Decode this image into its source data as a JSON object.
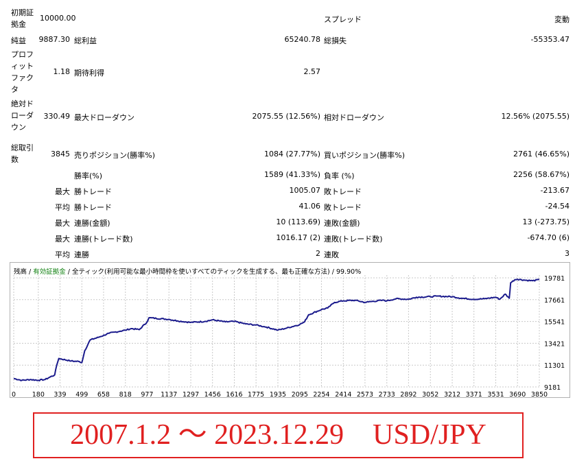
{
  "report": {
    "row1": {
      "deposit_label": "初期証拠金",
      "deposit_value": "10000.00",
      "spread_label": "スプレッド",
      "spread_value": "変動"
    },
    "row2": {
      "net_label": "純益",
      "net_value": "9887.30",
      "gross_profit_label": "総利益",
      "gross_profit_value": "65240.78",
      "gross_loss_label": "総損失",
      "gross_loss_value": "-55353.47"
    },
    "row3": {
      "pf_label": "プロフィットファクタ",
      "pf_value": "1.18",
      "ep_label": "期待利得",
      "ep_value": "2.57"
    },
    "row4": {
      "abs_dd_label": "絶対ドローダウン",
      "abs_dd_value": "330.49",
      "max_dd_label": "最大ドローダウン",
      "max_dd_value": "2075.55 (12.56%)",
      "rel_dd_label": "相対ドローダウン",
      "rel_dd_value": "12.56% (2075.55)"
    },
    "row5": {
      "trades_label": "総取引数",
      "trades_value": "3845",
      "short_label": "売りポジション(勝率%)",
      "short_value": "1084 (27.77%)",
      "long_label": "買いポジション(勝率%)",
      "long_value": "2761 (46.65%)"
    },
    "row6": {
      "win_label": "勝率(%)",
      "win_value": "1589 (41.33%)",
      "loss_label": "負率 (%)",
      "loss_value": "2256 (58.67%)"
    },
    "row7": {
      "prefix": "最大",
      "label": "勝トレード",
      "value": "1005.07",
      "label2": "敗トレード",
      "value2": "-213.67"
    },
    "row8": {
      "prefix": "平均",
      "label": "勝トレード",
      "value": "41.06",
      "label2": "敗トレード",
      "value2": "-24.54"
    },
    "row9": {
      "prefix": "最大",
      "label": "連勝(金額)",
      "value": "10 (113.69)",
      "label2": "連敗(金額)",
      "value2": "13 (-273.75)"
    },
    "row10": {
      "prefix": "最大",
      "label": "連勝(トレード数)",
      "value": "1016.17 (2)",
      "label2": "連敗(トレード数)",
      "value2": "-674.70 (6)"
    },
    "row11": {
      "prefix": "平均",
      "label": "連勝",
      "value": "2",
      "label2": "連敗",
      "value2": "3"
    }
  },
  "chart_legend": {
    "balance": "残高",
    "sep1": " / ",
    "equity": "有効証拠金",
    "sep2": " / ",
    "model": "全ティック(利用可能な最小時間枠を使いすべてのティックを生成する、最も正確な方法)",
    "sep3": " / ",
    "quality": "99.90%"
  },
  "chart_data": {
    "type": "line",
    "series": [
      {
        "name": "残高",
        "color": "#1a1a8c",
        "x": [
          0,
          60,
          120,
          180,
          230,
          260,
          300,
          315,
          330,
          420,
          480,
          499,
          520,
          560,
          620,
          700,
          780,
          818,
          860,
          920,
          977,
          990,
          1137,
          1200,
          1297,
          1400,
          1456,
          1550,
          1616,
          1700,
          1775,
          1850,
          1935,
          2000,
          2095,
          2130,
          2160,
          2254,
          2300,
          2350,
          2414,
          2500,
          2573,
          2600,
          2700,
          2733,
          2800,
          2892,
          2950,
          3052,
          3100,
          3212,
          3280,
          3371,
          3450,
          3531,
          3560,
          3600,
          3630,
          3640,
          3670,
          3690,
          3750,
          3800,
          3850
        ],
        "y": [
          10000,
          9820,
          9900,
          9830,
          9900,
          10100,
          10350,
          11300,
          11950,
          11700,
          11650,
          11550,
          12700,
          13750,
          14000,
          14400,
          14600,
          14700,
          14850,
          14750,
          15500,
          15900,
          15750,
          15600,
          15450,
          15550,
          15700,
          15500,
          15550,
          15300,
          15200,
          15000,
          14700,
          14900,
          15250,
          15500,
          16200,
          16700,
          16850,
          17400,
          17550,
          17600,
          17400,
          17450,
          17600,
          17550,
          17750,
          17700,
          17900,
          17950,
          18000,
          17950,
          17800,
          17700,
          17750,
          17900,
          17700,
          18200,
          17800,
          19300,
          19600,
          19650,
          19550,
          19500,
          19600
        ]
      }
    ],
    "x_ticks": [
      "0",
      "180",
      "339",
      "499",
      "658",
      "818",
      "977",
      "1137",
      "1297",
      "1456",
      "1616",
      "1775",
      "1935",
      "2095",
      "2254",
      "2414",
      "2573",
      "2733",
      "2892",
      "3052",
      "3212",
      "3371",
      "3531",
      "3690",
      "3850"
    ],
    "y_ticks": [
      "9181",
      "11301",
      "13421",
      "15541",
      "17661",
      "19781"
    ],
    "xlim": [
      0,
      3850
    ],
    "ylim": [
      9181,
      19781
    ],
    "grid": true
  },
  "period_banner": "2007.1.2 ～ 2023.12.29　USD/JPY"
}
